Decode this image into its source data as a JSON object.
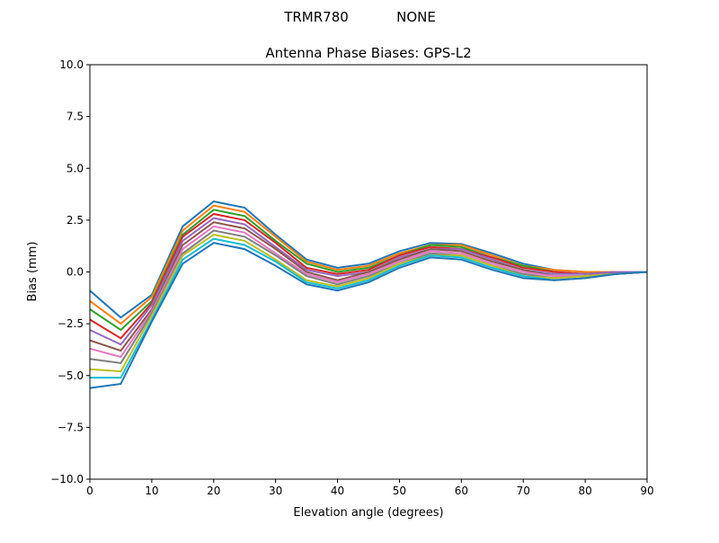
{
  "chart_data": {
    "type": "line",
    "suptitle_left": "TRMR780",
    "suptitle_right": "NONE",
    "title": "Antenna Phase Biases: GPS-L2",
    "xlabel": "Elevation angle (degrees)",
    "ylabel": "Bias (mm)",
    "xlim": [
      0,
      90
    ],
    "ylim": [
      -10,
      10
    ],
    "xticks": [
      0,
      10,
      20,
      30,
      40,
      50,
      60,
      70,
      80,
      90
    ],
    "xtick_labels": [
      "0",
      "10",
      "20",
      "30",
      "40",
      "50",
      "60",
      "70",
      "80",
      "90"
    ],
    "yticks": [
      -10,
      -7.5,
      -5,
      -2.5,
      0,
      2.5,
      5,
      7.5,
      10
    ],
    "ytick_labels": [
      "−10.0",
      "−7.5",
      "−5.0",
      "−2.5",
      "0.0",
      "2.5",
      "5.0",
      "7.5",
      "10.0"
    ],
    "grid": false,
    "x": [
      0,
      5,
      10,
      15,
      20,
      25,
      30,
      35,
      40,
      45,
      50,
      55,
      60,
      65,
      70,
      75,
      80,
      85,
      90
    ],
    "colors": [
      "#1f77b4",
      "#ff7f0e",
      "#2ca02c",
      "#d62728",
      "#9467bd",
      "#8c564b",
      "#e377c2",
      "#7f7f7f",
      "#bcbd22",
      "#17becf"
    ],
    "series": [
      {
        "values": [
          -0.9,
          -2.2,
          -1.1,
          2.2,
          3.4,
          3.1,
          1.8,
          0.6,
          0.2,
          0.4,
          1.0,
          1.4,
          1.35,
          0.9,
          0.4,
          0.1,
          0.0,
          0.0,
          0
        ]
      },
      {
        "values": [
          -1.4,
          -2.5,
          -1.2,
          2.0,
          3.2,
          2.9,
          1.7,
          0.5,
          0.1,
          0.3,
          0.9,
          1.3,
          1.3,
          0.8,
          0.3,
          0.1,
          0.0,
          0.0,
          0
        ]
      },
      {
        "values": [
          -1.8,
          -2.8,
          -1.4,
          1.8,
          3.0,
          2.7,
          1.5,
          0.4,
          0.0,
          0.2,
          0.8,
          1.3,
          1.2,
          0.7,
          0.3,
          0.0,
          -0.1,
          0.0,
          0
        ]
      },
      {
        "values": [
          -2.3,
          -3.2,
          -1.5,
          1.7,
          2.8,
          2.5,
          1.4,
          0.2,
          -0.1,
          0.1,
          0.8,
          1.2,
          1.1,
          0.7,
          0.2,
          0.0,
          -0.1,
          0.0,
          0
        ]
      },
      {
        "values": [
          -2.8,
          -3.5,
          -1.6,
          1.5,
          2.6,
          2.3,
          1.2,
          0.1,
          -0.2,
          0.0,
          0.7,
          1.1,
          1.1,
          0.6,
          0.1,
          -0.1,
          -0.1,
          0.0,
          0
        ]
      },
      {
        "values": [
          -3.3,
          -3.8,
          -1.8,
          1.3,
          2.4,
          2.1,
          1.1,
          0.0,
          -0.4,
          0.0,
          0.6,
          1.1,
          1.0,
          0.5,
          0.1,
          -0.2,
          -0.2,
          -0.1,
          0
        ]
      },
      {
        "values": [
          -3.7,
          -4.1,
          -1.9,
          1.1,
          2.2,
          1.9,
          0.9,
          -0.1,
          -0.5,
          -0.1,
          0.5,
          1.0,
          0.9,
          0.4,
          0.0,
          -0.2,
          -0.2,
          -0.1,
          0
        ]
      },
      {
        "values": [
          -4.2,
          -4.4,
          -2.0,
          0.9,
          2.0,
          1.7,
          0.8,
          -0.2,
          -0.6,
          -0.2,
          0.4,
          0.9,
          0.8,
          0.3,
          -0.1,
          -0.3,
          -0.2,
          -0.1,
          0
        ]
      },
      {
        "values": [
          -4.7,
          -4.8,
          -2.1,
          0.8,
          1.8,
          1.5,
          0.6,
          -0.4,
          -0.7,
          -0.3,
          0.4,
          0.8,
          0.8,
          0.3,
          -0.2,
          -0.3,
          -0.2,
          -0.1,
          0
        ]
      },
      {
        "values": [
          -5.1,
          -5.1,
          -2.3,
          0.6,
          1.6,
          1.3,
          0.5,
          -0.5,
          -0.8,
          -0.4,
          0.3,
          0.8,
          0.7,
          0.2,
          -0.2,
          -0.4,
          -0.3,
          -0.1,
          0
        ]
      },
      {
        "values": [
          -5.6,
          -5.4,
          -2.4,
          0.4,
          1.4,
          1.1,
          0.3,
          -0.6,
          -0.9,
          -0.5,
          0.2,
          0.7,
          0.6,
          0.1,
          -0.3,
          -0.4,
          -0.3,
          -0.1,
          0
        ]
      }
    ]
  }
}
